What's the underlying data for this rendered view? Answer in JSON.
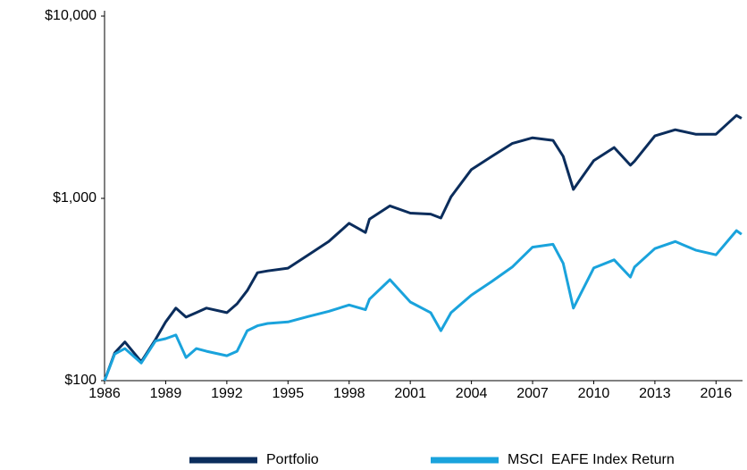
{
  "chart_data": {
    "type": "line",
    "x": [
      1986,
      1986.5,
      1987,
      1987.8,
      1988.5,
      1989,
      1989.5,
      1990,
      1990.5,
      1991,
      1992,
      1992.5,
      1993,
      1993.5,
      1994,
      1995,
      1996,
      1997,
      1998,
      1998.8,
      1999,
      2000,
      2001,
      2002,
      2002.5,
      2003,
      2004,
      2005,
      2006,
      2007,
      2008,
      2008.5,
      2009,
      2010,
      2011,
      2011.8,
      2012,
      2013,
      2014,
      2015,
      2016,
      2017,
      2017.25
    ],
    "series": [
      {
        "name": "Portfolio",
        "color": "#0b2d5c",
        "values": [
          100,
          142,
          163,
          127,
          168,
          210,
          250,
          223,
          236,
          250,
          236,
          264,
          312,
          391,
          400,
          414,
          490,
          580,
          730,
          650,
          770,
          910,
          830,
          820,
          780,
          1020,
          1440,
          1700,
          2000,
          2150,
          2080,
          1700,
          1120,
          1610,
          1900,
          1520,
          1600,
          2200,
          2380,
          2250,
          2250,
          2850,
          2750
        ]
      },
      {
        "name": "MSCI  EAFE Index Return",
        "color": "#1aa3dc",
        "values": [
          100,
          140,
          150,
          125,
          165,
          170,
          178,
          134,
          150,
          145,
          137,
          145,
          188,
          200,
          206,
          210,
          225,
          240,
          260,
          245,
          280,
          358,
          270,
          236,
          188,
          236,
          295,
          350,
          420,
          540,
          560,
          440,
          250,
          415,
          460,
          370,
          420,
          530,
          580,
          520,
          490,
          665,
          635
        ]
      }
    ],
    "xlim": [
      1986,
      2017.3
    ],
    "xticks": [
      1986,
      1989,
      1992,
      1995,
      1998,
      2001,
      2004,
      2007,
      2010,
      2013,
      2016
    ],
    "ylim": [
      100,
      10000
    ],
    "yticks": [
      {
        "value": 100,
        "label": "$100"
      },
      {
        "value": 1000,
        "label": "$1,000"
      },
      {
        "value": 10000,
        "label": "$10,000"
      }
    ],
    "log_scale": true,
    "grid": false,
    "legend": "bottom"
  }
}
